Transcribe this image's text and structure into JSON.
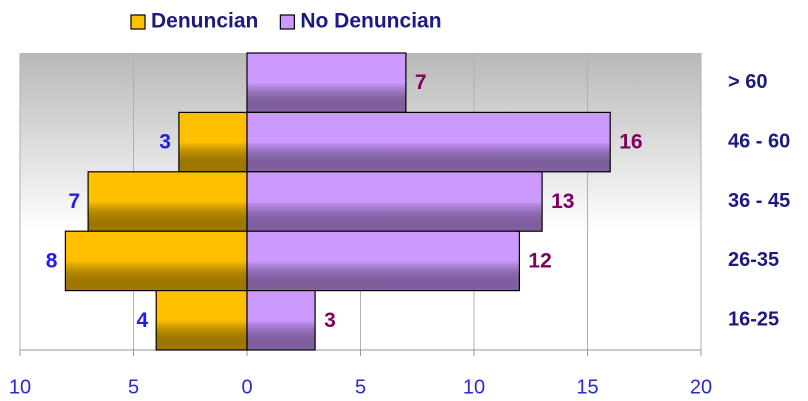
{
  "chart_data": {
    "type": "bar",
    "orientation": "horizontal",
    "categories": [
      "> 60",
      "46 - 60",
      "36 - 45",
      "26-35",
      "16-25"
    ],
    "series": [
      {
        "name": "Denuncian",
        "color": "#ffc000",
        "values": [
          null,
          -3,
          -7,
          -8,
          -4
        ],
        "value_labels": [
          null,
          "3",
          "7",
          "8",
          "4"
        ]
      },
      {
        "name": "No Denuncian",
        "color": "#cc99ff",
        "values": [
          7,
          16,
          13,
          12,
          3
        ]
      }
    ],
    "xlim": [
      -10,
      20
    ],
    "xticks": [
      {
        "value": -10,
        "label": "10"
      },
      {
        "value": -5,
        "label": "5"
      },
      0,
      5,
      10,
      15,
      20
    ],
    "grid": true,
    "legend": "top"
  }
}
